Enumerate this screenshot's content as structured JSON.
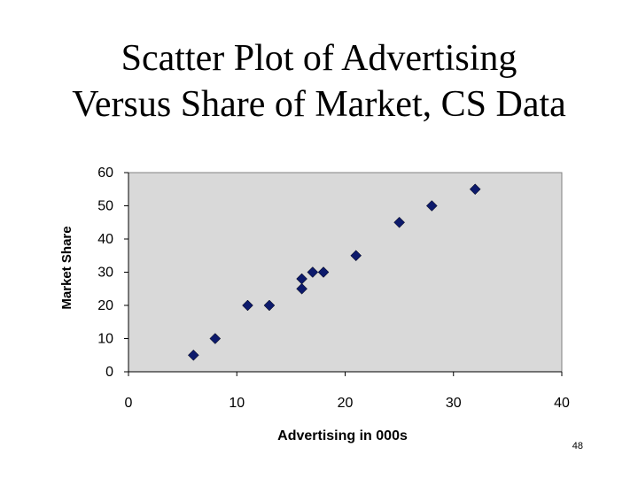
{
  "slide": {
    "title_line1": "Scatter Plot of Advertising",
    "title_line2": "Versus Share of Market, CS Data",
    "page_number": "48"
  },
  "chart_data": {
    "type": "scatter",
    "title": "",
    "xlabel": "Advertising in 000s",
    "ylabel": "Market Share",
    "xlim": [
      0,
      40
    ],
    "ylim": [
      0,
      60
    ],
    "xticks": [
      "0",
      "10",
      "20",
      "30",
      "40"
    ],
    "yticks": [
      "0",
      "10",
      "20",
      "30",
      "40",
      "50",
      "60"
    ],
    "grid": false,
    "legend": "none",
    "marker": "diamond",
    "colors": {
      "plot_bg": "#d9d9d9",
      "marker": "#0d1a6b",
      "axis": "#808080"
    },
    "points": [
      {
        "x": 6,
        "y": 5
      },
      {
        "x": 8,
        "y": 10
      },
      {
        "x": 11,
        "y": 20
      },
      {
        "x": 13,
        "y": 20
      },
      {
        "x": 16,
        "y": 25
      },
      {
        "x": 16,
        "y": 28
      },
      {
        "x": 17,
        "y": 30
      },
      {
        "x": 18,
        "y": 30
      },
      {
        "x": 21,
        "y": 35
      },
      {
        "x": 25,
        "y": 45
      },
      {
        "x": 28,
        "y": 50
      },
      {
        "x": 32,
        "y": 55
      }
    ]
  }
}
